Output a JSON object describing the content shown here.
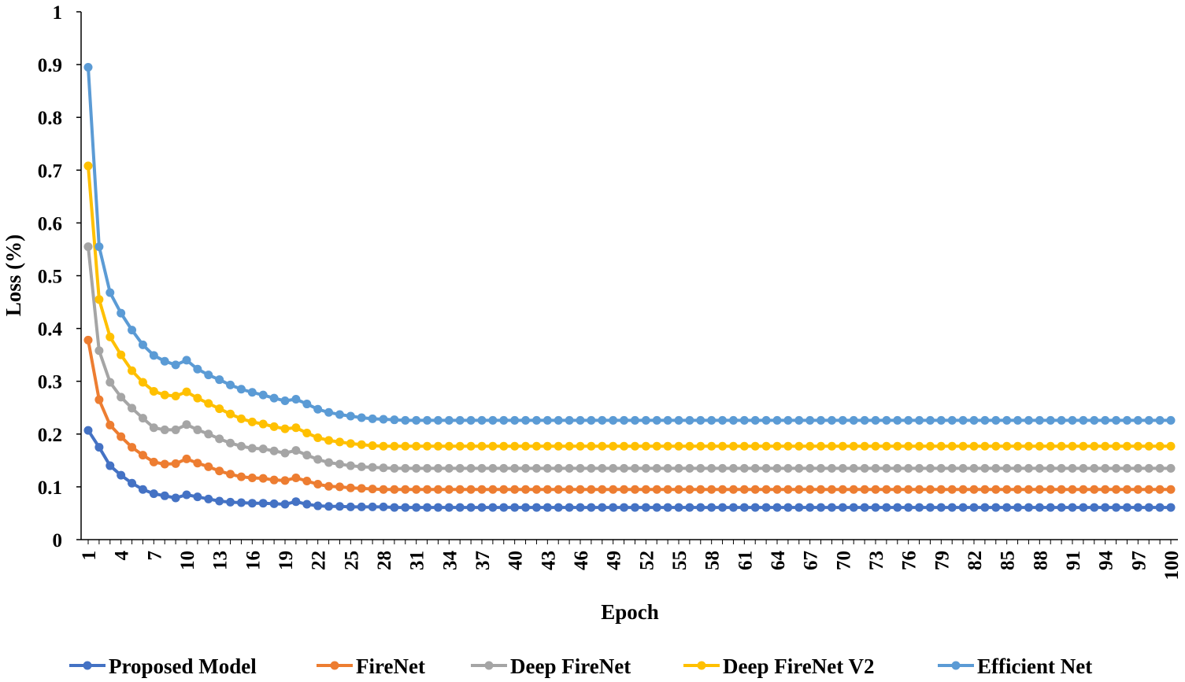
{
  "chart_data": {
    "type": "line",
    "title": "",
    "xlabel": "Epoch",
    "ylabel": "Loss (%)",
    "ylim": [
      0,
      1
    ],
    "yticks": [
      "0",
      "0.1",
      "0.2",
      "0.3",
      "0.4",
      "0.5",
      "0.6",
      "0.7",
      "0.8",
      "0.9",
      "1"
    ],
    "xticks": [
      "1",
      "4",
      "7",
      "10",
      "13",
      "16",
      "19",
      "22",
      "25",
      "28",
      "31",
      "34",
      "37",
      "40",
      "43",
      "46",
      "49",
      "52",
      "55",
      "58",
      "61",
      "64",
      "67",
      "70",
      "73",
      "76",
      "79",
      "82",
      "85",
      "88",
      "91",
      "94",
      "97",
      "100"
    ],
    "x_start": 1,
    "x_end": 100,
    "grid": false,
    "legend_position": "bottom",
    "series": [
      {
        "name": "Proposed Model",
        "color": "#4472C4",
        "values": [
          0.207,
          0.175,
          0.14,
          0.122,
          0.107,
          0.095,
          0.087,
          0.083,
          0.079,
          0.085,
          0.081,
          0.077,
          0.073,
          0.071,
          0.07,
          0.069,
          0.069,
          0.068,
          0.067,
          0.072,
          0.067,
          0.064,
          0.063,
          0.063,
          0.062,
          0.062,
          0.062,
          0.062,
          0.061,
          0.061,
          0.061,
          0.061,
          0.061,
          0.061,
          0.061,
          0.061,
          0.061,
          0.061,
          0.061,
          0.061,
          0.061,
          0.061,
          0.061,
          0.061,
          0.061,
          0.061,
          0.061,
          0.061,
          0.061,
          0.061,
          0.061,
          0.061,
          0.061,
          0.061,
          0.061,
          0.061,
          0.061,
          0.061,
          0.061,
          0.061,
          0.061,
          0.061,
          0.061,
          0.061,
          0.061,
          0.061,
          0.061,
          0.061,
          0.061,
          0.061,
          0.061,
          0.061,
          0.061,
          0.061,
          0.061,
          0.061,
          0.061,
          0.061,
          0.061,
          0.061,
          0.061,
          0.061,
          0.061,
          0.061,
          0.061,
          0.061,
          0.061,
          0.061,
          0.061,
          0.061,
          0.061,
          0.061,
          0.061,
          0.061,
          0.061,
          0.061,
          0.061,
          0.061,
          0.061,
          0.061
        ]
      },
      {
        "name": "FireNet",
        "color": "#ED7D31",
        "values": [
          0.378,
          0.265,
          0.217,
          0.195,
          0.175,
          0.16,
          0.147,
          0.143,
          0.144,
          0.153,
          0.145,
          0.138,
          0.13,
          0.124,
          0.119,
          0.117,
          0.116,
          0.113,
          0.112,
          0.117,
          0.111,
          0.105,
          0.101,
          0.1,
          0.098,
          0.097,
          0.096,
          0.095,
          0.095,
          0.095,
          0.095,
          0.095,
          0.095,
          0.095,
          0.095,
          0.095,
          0.095,
          0.095,
          0.095,
          0.095,
          0.095,
          0.095,
          0.095,
          0.095,
          0.095,
          0.095,
          0.095,
          0.095,
          0.095,
          0.095,
          0.095,
          0.095,
          0.095,
          0.095,
          0.095,
          0.095,
          0.095,
          0.095,
          0.095,
          0.095,
          0.095,
          0.095,
          0.095,
          0.095,
          0.095,
          0.095,
          0.095,
          0.095,
          0.095,
          0.095,
          0.095,
          0.095,
          0.095,
          0.095,
          0.095,
          0.095,
          0.095,
          0.095,
          0.095,
          0.095,
          0.095,
          0.095,
          0.095,
          0.095,
          0.095,
          0.095,
          0.095,
          0.095,
          0.095,
          0.095,
          0.095,
          0.095,
          0.095,
          0.095,
          0.095,
          0.095,
          0.095,
          0.095,
          0.095,
          0.095
        ]
      },
      {
        "name": "Deep FireNet",
        "color": "#A5A5A5",
        "values": [
          0.555,
          0.358,
          0.298,
          0.27,
          0.249,
          0.23,
          0.212,
          0.208,
          0.208,
          0.218,
          0.208,
          0.2,
          0.191,
          0.183,
          0.177,
          0.173,
          0.172,
          0.168,
          0.164,
          0.169,
          0.16,
          0.152,
          0.146,
          0.143,
          0.14,
          0.138,
          0.137,
          0.136,
          0.135,
          0.135,
          0.135,
          0.135,
          0.135,
          0.135,
          0.135,
          0.135,
          0.135,
          0.135,
          0.135,
          0.135,
          0.135,
          0.135,
          0.135,
          0.135,
          0.135,
          0.135,
          0.135,
          0.135,
          0.135,
          0.135,
          0.135,
          0.135,
          0.135,
          0.135,
          0.135,
          0.135,
          0.135,
          0.135,
          0.135,
          0.135,
          0.135,
          0.135,
          0.135,
          0.135,
          0.135,
          0.135,
          0.135,
          0.135,
          0.135,
          0.135,
          0.135,
          0.135,
          0.135,
          0.135,
          0.135,
          0.135,
          0.135,
          0.135,
          0.135,
          0.135,
          0.135,
          0.135,
          0.135,
          0.135,
          0.135,
          0.135,
          0.135,
          0.135,
          0.135,
          0.135,
          0.135,
          0.135,
          0.135,
          0.135,
          0.135,
          0.135,
          0.135,
          0.135,
          0.135,
          0.135
        ]
      },
      {
        "name": "Deep FireNet V2",
        "color": "#FFC000",
        "values": [
          0.708,
          0.455,
          0.384,
          0.35,
          0.32,
          0.298,
          0.281,
          0.274,
          0.272,
          0.28,
          0.268,
          0.258,
          0.248,
          0.238,
          0.229,
          0.223,
          0.219,
          0.214,
          0.21,
          0.212,
          0.202,
          0.193,
          0.188,
          0.185,
          0.182,
          0.18,
          0.178,
          0.177,
          0.177,
          0.177,
          0.177,
          0.177,
          0.177,
          0.177,
          0.177,
          0.177,
          0.177,
          0.177,
          0.177,
          0.177,
          0.177,
          0.177,
          0.177,
          0.177,
          0.177,
          0.177,
          0.177,
          0.177,
          0.177,
          0.177,
          0.177,
          0.177,
          0.177,
          0.177,
          0.177,
          0.177,
          0.177,
          0.177,
          0.177,
          0.177,
          0.177,
          0.177,
          0.177,
          0.177,
          0.177,
          0.177,
          0.177,
          0.177,
          0.177,
          0.177,
          0.177,
          0.177,
          0.177,
          0.177,
          0.177,
          0.177,
          0.177,
          0.177,
          0.177,
          0.177,
          0.177,
          0.177,
          0.177,
          0.177,
          0.177,
          0.177,
          0.177,
          0.177,
          0.177,
          0.177,
          0.177,
          0.177,
          0.177,
          0.177,
          0.177,
          0.177,
          0.177,
          0.177,
          0.177,
          0.177
        ]
      },
      {
        "name": "Efficient Net",
        "color": "#5B9BD5",
        "values": [
          0.895,
          0.555,
          0.468,
          0.429,
          0.397,
          0.369,
          0.349,
          0.338,
          0.331,
          0.34,
          0.323,
          0.312,
          0.303,
          0.293,
          0.285,
          0.279,
          0.274,
          0.268,
          0.263,
          0.266,
          0.257,
          0.247,
          0.241,
          0.237,
          0.234,
          0.231,
          0.229,
          0.228,
          0.227,
          0.226,
          0.226,
          0.226,
          0.226,
          0.226,
          0.226,
          0.226,
          0.226,
          0.226,
          0.226,
          0.226,
          0.226,
          0.226,
          0.226,
          0.226,
          0.226,
          0.226,
          0.226,
          0.226,
          0.226,
          0.226,
          0.226,
          0.226,
          0.226,
          0.226,
          0.226,
          0.226,
          0.226,
          0.226,
          0.226,
          0.226,
          0.226,
          0.226,
          0.226,
          0.226,
          0.226,
          0.226,
          0.226,
          0.226,
          0.226,
          0.226,
          0.226,
          0.226,
          0.226,
          0.226,
          0.226,
          0.226,
          0.226,
          0.226,
          0.226,
          0.226,
          0.226,
          0.226,
          0.226,
          0.226,
          0.226,
          0.226,
          0.226,
          0.226,
          0.226,
          0.226,
          0.226,
          0.226,
          0.226,
          0.226,
          0.226,
          0.226,
          0.226,
          0.226,
          0.226,
          0.226
        ]
      }
    ]
  }
}
